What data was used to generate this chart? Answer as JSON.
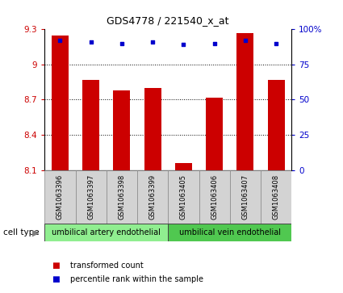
{
  "title": "GDS4778 / 221540_x_at",
  "samples": [
    "GSM1063396",
    "GSM1063397",
    "GSM1063398",
    "GSM1063399",
    "GSM1063405",
    "GSM1063406",
    "GSM1063407",
    "GSM1063408"
  ],
  "transformed_counts": [
    9.25,
    8.87,
    8.78,
    8.8,
    8.16,
    8.72,
    9.27,
    8.87
  ],
  "percentile_ranks": [
    92,
    91,
    90,
    91,
    89,
    90,
    92,
    90
  ],
  "ylim_left": [
    8.1,
    9.3
  ],
  "ylim_right": [
    0,
    100
  ],
  "yticks_left": [
    8.1,
    8.4,
    8.7,
    9.0,
    9.3
  ],
  "yticks_right": [
    0,
    25,
    50,
    75,
    100
  ],
  "ytick_labels_left": [
    "8.1",
    "8.4",
    "8.7",
    "9",
    "9.3"
  ],
  "ytick_labels_right": [
    "0",
    "25",
    "50",
    "75",
    "100%"
  ],
  "bar_color": "#cc0000",
  "dot_color": "#0000cc",
  "group1_label": "umbilical artery endothelial",
  "group2_label": "umbilical vein endothelial",
  "group_color": "#90ee90",
  "cell_type_label": "cell type",
  "legend_red_label": "transformed count",
  "legend_blue_label": "percentile rank within the sample",
  "background_color": "#ffffff",
  "tick_label_color_left": "#cc0000",
  "tick_label_color_right": "#0000cc",
  "base_value": 8.1,
  "label_bg_color": "#d3d3d3",
  "grid_lines": [
    9.0,
    8.7,
    8.4
  ],
  "arrow_color": "#808080"
}
